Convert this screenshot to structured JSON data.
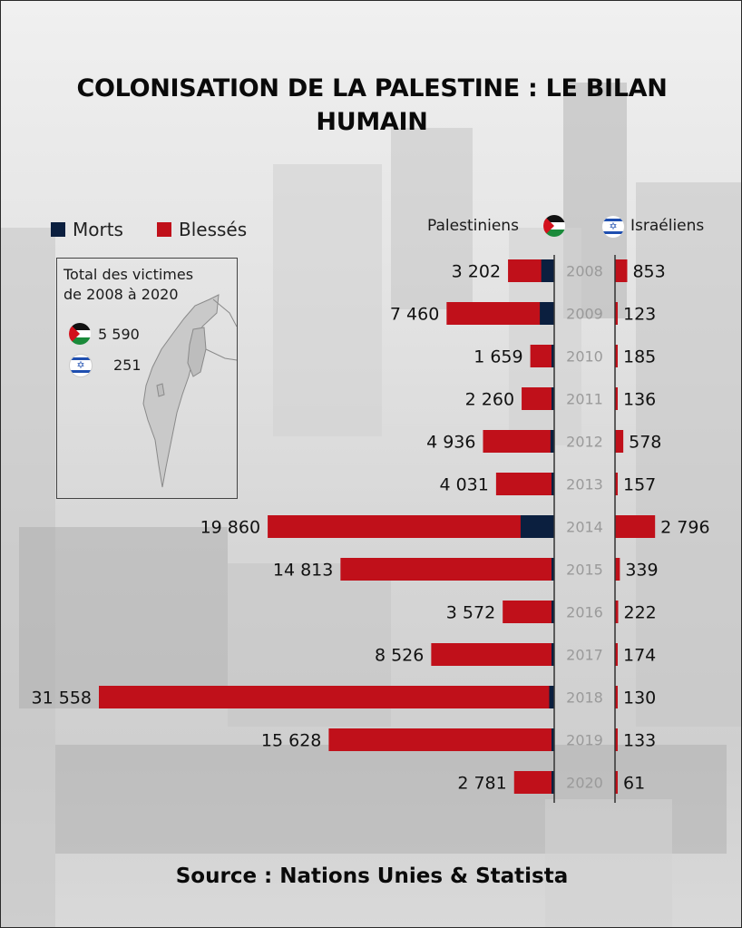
{
  "title": "COLONISATION DE LA PALESTINE : LE BILAN HUMAIN",
  "legend": {
    "deaths": "Morts",
    "injured": "Blessés"
  },
  "headers": {
    "palestinians": "Palestiniens",
    "israelis": "Israéliens"
  },
  "inset": {
    "title_line1": "Total des victimes",
    "title_line2": "de 2008 à 2020",
    "palestinians_total": "5 590",
    "israelis_total": "251"
  },
  "source": "Source : Nations Unies & Statista",
  "colors": {
    "deaths": "#0b1f3f",
    "injured": "#c0101a",
    "year_text": "#9a9a9a",
    "axis": "#333333"
  },
  "chart_data": {
    "type": "bar",
    "categories": [
      "2008",
      "2009",
      "2010",
      "2011",
      "2012",
      "2013",
      "2014",
      "2015",
      "2016",
      "2017",
      "2018",
      "2019",
      "2020"
    ],
    "series": [
      {
        "name": "Palestiniens",
        "labels": [
          "3 202",
          "7 460",
          "1 659",
          "2 260",
          "4 936",
          "4 031",
          "19 860",
          "14 813",
          "3 572",
          "8 526",
          "31 558",
          "15 628",
          "2 781"
        ],
        "values": [
          3202,
          7460,
          1659,
          2260,
          4936,
          4031,
          19860,
          14813,
          3572,
          8526,
          31558,
          15628,
          2781
        ],
        "deaths": [
          900,
          1000,
          100,
          160,
          260,
          40,
          2330,
          170,
          110,
          80,
          350,
          140,
          30
        ]
      },
      {
        "name": "Israéliens",
        "labels": [
          "853",
          "123",
          "185",
          "136",
          "578",
          "157",
          "2 796",
          "339",
          "222",
          "174",
          "130",
          "133",
          "61"
        ],
        "values": [
          853,
          123,
          185,
          136,
          578,
          157,
          2796,
          339,
          222,
          174,
          130,
          133,
          61
        ],
        "deaths": [
          30,
          10,
          2,
          5,
          10,
          3,
          80,
          5,
          15,
          20,
          2,
          2,
          3
        ]
      }
    ]
  }
}
